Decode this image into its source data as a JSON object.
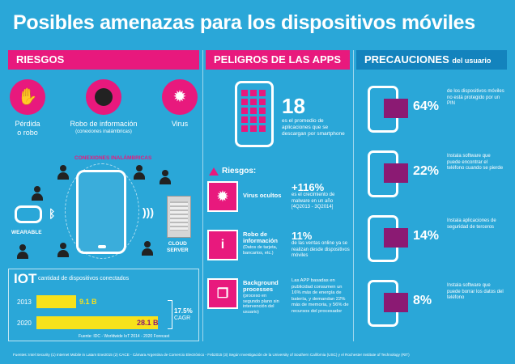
{
  "title": "Posibles amenazas para los dispositivos móviles",
  "columns": {
    "riesgos": {
      "header": "RIESGOS",
      "items": [
        {
          "label": "Pérdida\no robo",
          "icon": "stolen-phone-icon"
        },
        {
          "label": "Robo de información",
          "sublabel": "(conexiones inalámbricas)",
          "icon": "hacker-icon"
        },
        {
          "label": "Virus",
          "icon": "virus-icon"
        }
      ],
      "conexiones_label": "CONEXIONES INALÁMBRICAS",
      "wearable_label": "WEARABLE",
      "cloud_label": "CLOUD\nSERVER"
    },
    "peligros": {
      "header": "PELIGROS DE LAS APPS",
      "stat_value": "18",
      "stat_desc": "es el promedio de aplicaciones que se descargan por smartphone",
      "riesgos_label": "Riesgos:",
      "items": [
        {
          "name": "Virus ocultos",
          "detail": "",
          "big": "+116%",
          "desc": "es el crecimiento de malware en un año [4Q2013 - 3Q2014]",
          "icon": "hidden-virus-icon"
        },
        {
          "name": "Robo de información",
          "detail": "(Datos de tarjeta, bancarios, etc.)",
          "big": "11%",
          "desc": "de las ventas online ya se realizan desde dispositivos móviles",
          "icon": "info-icon"
        },
        {
          "name": "Background processes",
          "detail": "(proceso en segundo plano sin intervención del usuario)",
          "big": "",
          "desc": "Las APP basadas en publicidad consumen un 16% más de energía de batería, y demandan 22% más de memoria, y 56% de recursos del procesador",
          "icon": "background-process-icon"
        }
      ]
    },
    "precauciones": {
      "header": "PRECAUCIONES",
      "header_sub": "del usuario",
      "items": [
        {
          "pct": "64%",
          "text": "de los dispositivos móviles no está protegido por un PIN"
        },
        {
          "pct": "22%",
          "text": "Instala software que puede encontrar el teléfono cuando se pierde"
        },
        {
          "pct": "14%",
          "text": "Instala aplicaciones de seguridad de terceros"
        },
        {
          "pct": "8%",
          "text": "Instala software que puede borrar los datos del teléfono"
        }
      ]
    }
  },
  "iot": {
    "heading": "IOT",
    "subheading": "cantidad de dispositivos conectados",
    "rows": [
      {
        "year": "2013",
        "value_label": "9.1 B",
        "value": 9.1
      },
      {
        "year": "2020",
        "value_label": "28.1 B",
        "value": 28.1
      }
    ],
    "cagr_value": "17.5%",
    "cagr_label": "CAGR",
    "source": "Fuente: IDC - Worldwide IoT 2014 - 2020 Forecast"
  },
  "footer": "Fuentes: Intel Security (1) Internet Mobile in Latam Ene2015 (2) CACE - Cámara Argentina de Comercio Electrónico - Feb2015 (3) Según Investigación de la University of Southern California (USC) y el Rochester Institute of Technology (RIT)",
  "colors": {
    "background": "#2aa7d8",
    "pink": "#e8197d",
    "dark_blue": "#1383bd",
    "purple": "#8b1a73",
    "yellow": "#f7e21b"
  }
}
